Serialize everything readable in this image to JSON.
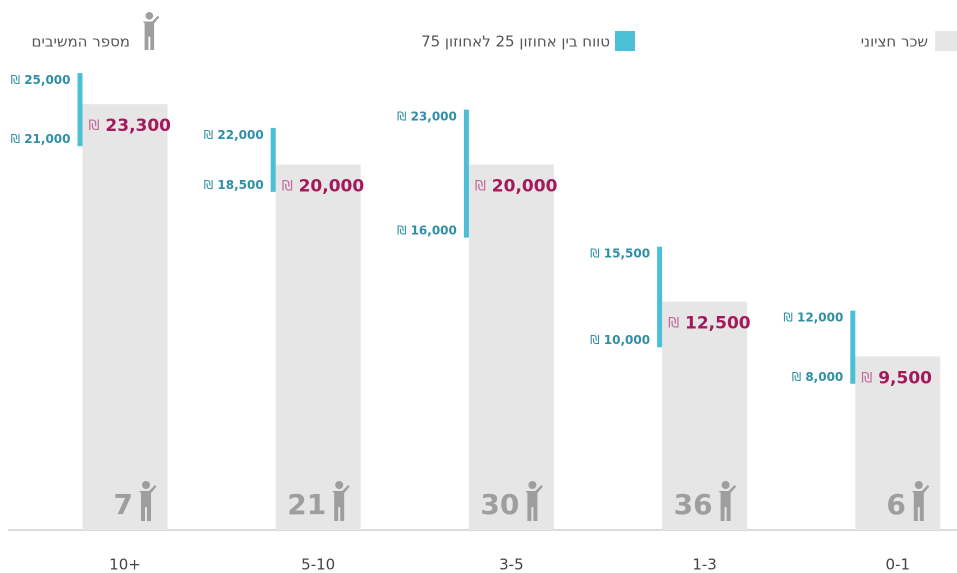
{
  "chart_data": {
    "type": "range-bar",
    "legend": {
      "median": "שכר חציוני",
      "range": "טווח בין אחוזון 25 לאחוזון 75",
      "count": "מספר המשיבים"
    },
    "currency": "₪",
    "categories": [
      "10+",
      "5-10",
      "3-5",
      "1-3",
      "0-1"
    ],
    "median": {
      "color": "#e6e6e7",
      "values": [
        23300,
        20000,
        20000,
        12500,
        9500
      ],
      "value_labels": [
        "23,300",
        "20,000",
        "20,000",
        "12,500",
        "9,500"
      ]
    },
    "p25": {
      "values": [
        21000,
        18500,
        16000,
        10000,
        8000
      ],
      "value_labels": [
        "21,000",
        "18,500",
        "16,000",
        "10,000",
        "8,000"
      ]
    },
    "p75": {
      "values": [
        25000,
        22000,
        23000,
        15500,
        12000
      ],
      "value_labels": [
        "25,000",
        "22,000",
        "23,000",
        "15,500",
        "12,000"
      ]
    },
    "range_color": "#4bbfd6",
    "counts": [
      7,
      21,
      30,
      36,
      6
    ],
    "ylim": [
      0,
      29000
    ]
  }
}
